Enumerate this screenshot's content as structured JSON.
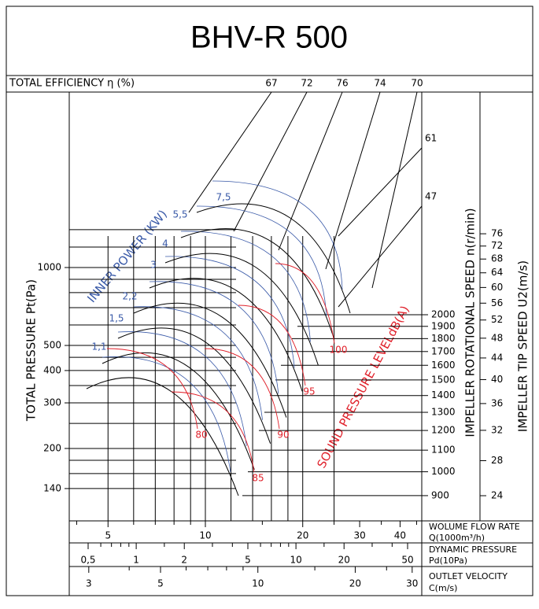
{
  "title": "BHV-R 500",
  "efficiency": {
    "label": "TOTAL EFFICIENCY η (%)",
    "values": [
      67,
      72,
      76,
      74,
      70
    ],
    "side_values": [
      61,
      47
    ]
  },
  "pressure": {
    "label": "TOTAL PRESSURE Pt(Pa)",
    "ticks": [
      1000,
      500,
      400,
      300,
      200,
      140
    ]
  },
  "power": {
    "label": "INNER POWER (KW)",
    "values": [
      "1,1",
      "1,5",
      "2,2",
      "3",
      "4",
      "5,5",
      "7,5"
    ]
  },
  "sound": {
    "label": "SOUND PRESSURE LEVELdB(A)",
    "values": [
      80,
      85,
      90,
      95,
      100
    ]
  },
  "speed": {
    "label": "IMPELLER ROTATIONAL SPEED n(r/min)",
    "ticks": [
      2000,
      1900,
      1800,
      1700,
      1600,
      1500,
      1400,
      1300,
      1200,
      1100,
      1000,
      900
    ]
  },
  "tip_speed": {
    "label": "IMPELLER TIP SPEED U2(m/s)",
    "ticks": [
      76,
      72,
      68,
      64,
      60,
      56,
      52,
      48,
      44,
      40,
      36,
      32,
      28,
      24
    ]
  },
  "flow": {
    "label": "WOLUME FLOW RATE",
    "unit": "Q(1000m³/h)",
    "ticks": [
      5,
      10,
      20,
      30,
      40
    ]
  },
  "dynamic_pressure": {
    "label": "DYNAMIC PRESSURE",
    "unit": "Pd(10Pa)",
    "ticks": [
      {
        "value": 0.5,
        "label": "0,5"
      },
      1,
      2,
      5,
      10,
      20,
      50
    ]
  },
  "velocity": {
    "label": "OUTLET VELOCITY",
    "unit": "C(m/s)",
    "ticks": [
      3,
      5,
      10,
      20,
      30
    ]
  }
}
